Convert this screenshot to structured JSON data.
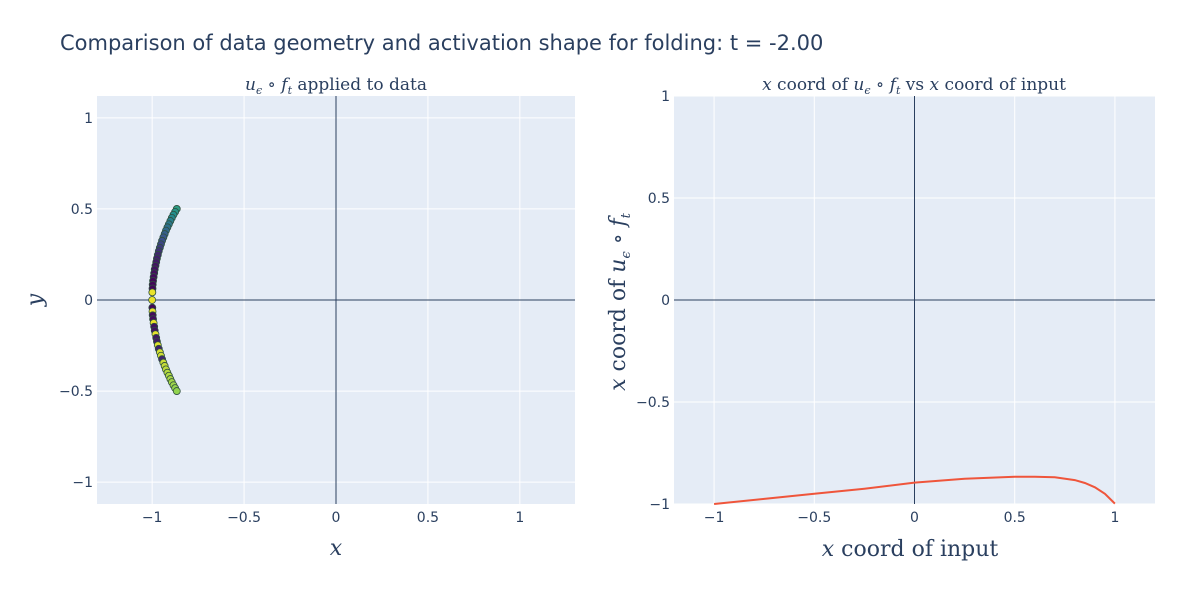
{
  "title": "Comparison of data geometry and activation shape for folding: t = -2.00",
  "colors": {
    "plot_bg": "#e5ecf6",
    "grid": "#ffffff",
    "zeroline": "#2a3f5f",
    "line": "#ef553b",
    "marker_outline": "#2f4f3f"
  },
  "chart_data": [
    {
      "type": "scatter",
      "title": "u_ϵ ∘ f_t applied to data",
      "xlabel": "x",
      "ylabel": "y",
      "xlim": [
        -1.3,
        1.3
      ],
      "ylim": [
        -1.12,
        1.12
      ],
      "xticks": [
        -1,
        -0.5,
        0,
        0.5,
        1
      ],
      "xtick_labels": [
        "−1",
        "−0.5",
        "0",
        "0.5",
        "1"
      ],
      "yticks": [
        -1,
        -0.5,
        0,
        0.5,
        1
      ],
      "ytick_labels": [
        "−1",
        "−0.5",
        "0",
        "0.5",
        "1"
      ],
      "colorscale": "viridis",
      "x": [
        -0.866,
        -0.875,
        -0.884,
        -0.893,
        -0.901,
        -0.909,
        -0.917,
        -0.925,
        -0.932,
        -0.939,
        -0.946,
        -0.952,
        -0.958,
        -0.964,
        -0.969,
        -0.974,
        -0.978,
        -0.982,
        -0.986,
        -0.989,
        -0.992,
        -0.995,
        -0.997,
        -0.998,
        -0.999,
        -1.0,
        -0.999,
        -0.998,
        -0.997,
        -0.995,
        -0.992,
        -0.989,
        -0.986,
        -0.982,
        -0.978,
        -0.974,
        -0.969,
        -0.964,
        -0.958,
        -0.952,
        -0.946,
        -0.939,
        -0.932,
        -0.925,
        -0.917,
        -0.909,
        -0.901,
        -0.893,
        -0.884,
        -0.875,
        -0.866
      ],
      "y": [
        0.5,
        0.484,
        0.468,
        0.451,
        0.434,
        0.416,
        0.399,
        0.381,
        0.362,
        0.344,
        0.325,
        0.306,
        0.287,
        0.268,
        0.248,
        0.228,
        0.208,
        0.188,
        0.168,
        0.147,
        0.126,
        0.105,
        0.084,
        0.063,
        0.042,
        0.0,
        -0.042,
        -0.063,
        -0.084,
        -0.105,
        -0.126,
        -0.147,
        -0.168,
        -0.188,
        -0.208,
        -0.228,
        -0.248,
        -0.268,
        -0.287,
        -0.306,
        -0.325,
        -0.344,
        -0.362,
        -0.381,
        -0.399,
        -0.416,
        -0.434,
        -0.451,
        -0.468,
        -0.484,
        -0.5
      ],
      "color_values": [
        0.55,
        0.52,
        0.49,
        0.46,
        0.43,
        0.4,
        0.37,
        0.34,
        0.3,
        0.27,
        0.24,
        0.21,
        0.18,
        0.15,
        0.12,
        0.1,
        0.08,
        0.06,
        0.05,
        0.04,
        0.03,
        0.02,
        0.02,
        0.02,
        0.97,
        0.97,
        0.02,
        0.97,
        0.03,
        0.04,
        0.97,
        0.05,
        0.06,
        0.96,
        0.07,
        0.08,
        0.95,
        0.1,
        0.94,
        0.93,
        0.12,
        0.92,
        0.91,
        0.9,
        0.89,
        0.88,
        0.87,
        0.86,
        0.85,
        0.84,
        0.83
      ]
    },
    {
      "type": "line",
      "title": "x coord of u_ϵ ∘ f_t vs x coord of input",
      "xlabel": "x coord of input",
      "ylabel": "x coord of u_ϵ ∘ f_t",
      "xlim": [
        -1.2,
        1.2
      ],
      "ylim": [
        -1.0,
        1.0
      ],
      "xticks": [
        -1,
        -0.5,
        0,
        0.5,
        1
      ],
      "xtick_labels": [
        "−1",
        "−0.5",
        "0",
        "0.5",
        "1"
      ],
      "yticks": [
        -1,
        -0.5,
        0,
        0.5,
        1
      ],
      "ytick_labels": [
        "−1",
        "−0.5",
        "0",
        "0.5",
        "1"
      ],
      "x": [
        -1.0,
        -0.75,
        -0.5,
        -0.25,
        0.0,
        0.25,
        0.5,
        0.6,
        0.7,
        0.8,
        0.85,
        0.9,
        0.95,
        1.0
      ],
      "y": [
        -1.0,
        -0.975,
        -0.95,
        -0.925,
        -0.895,
        -0.876,
        -0.866,
        -0.866,
        -0.869,
        -0.883,
        -0.897,
        -0.918,
        -0.95,
        -0.998
      ]
    }
  ]
}
